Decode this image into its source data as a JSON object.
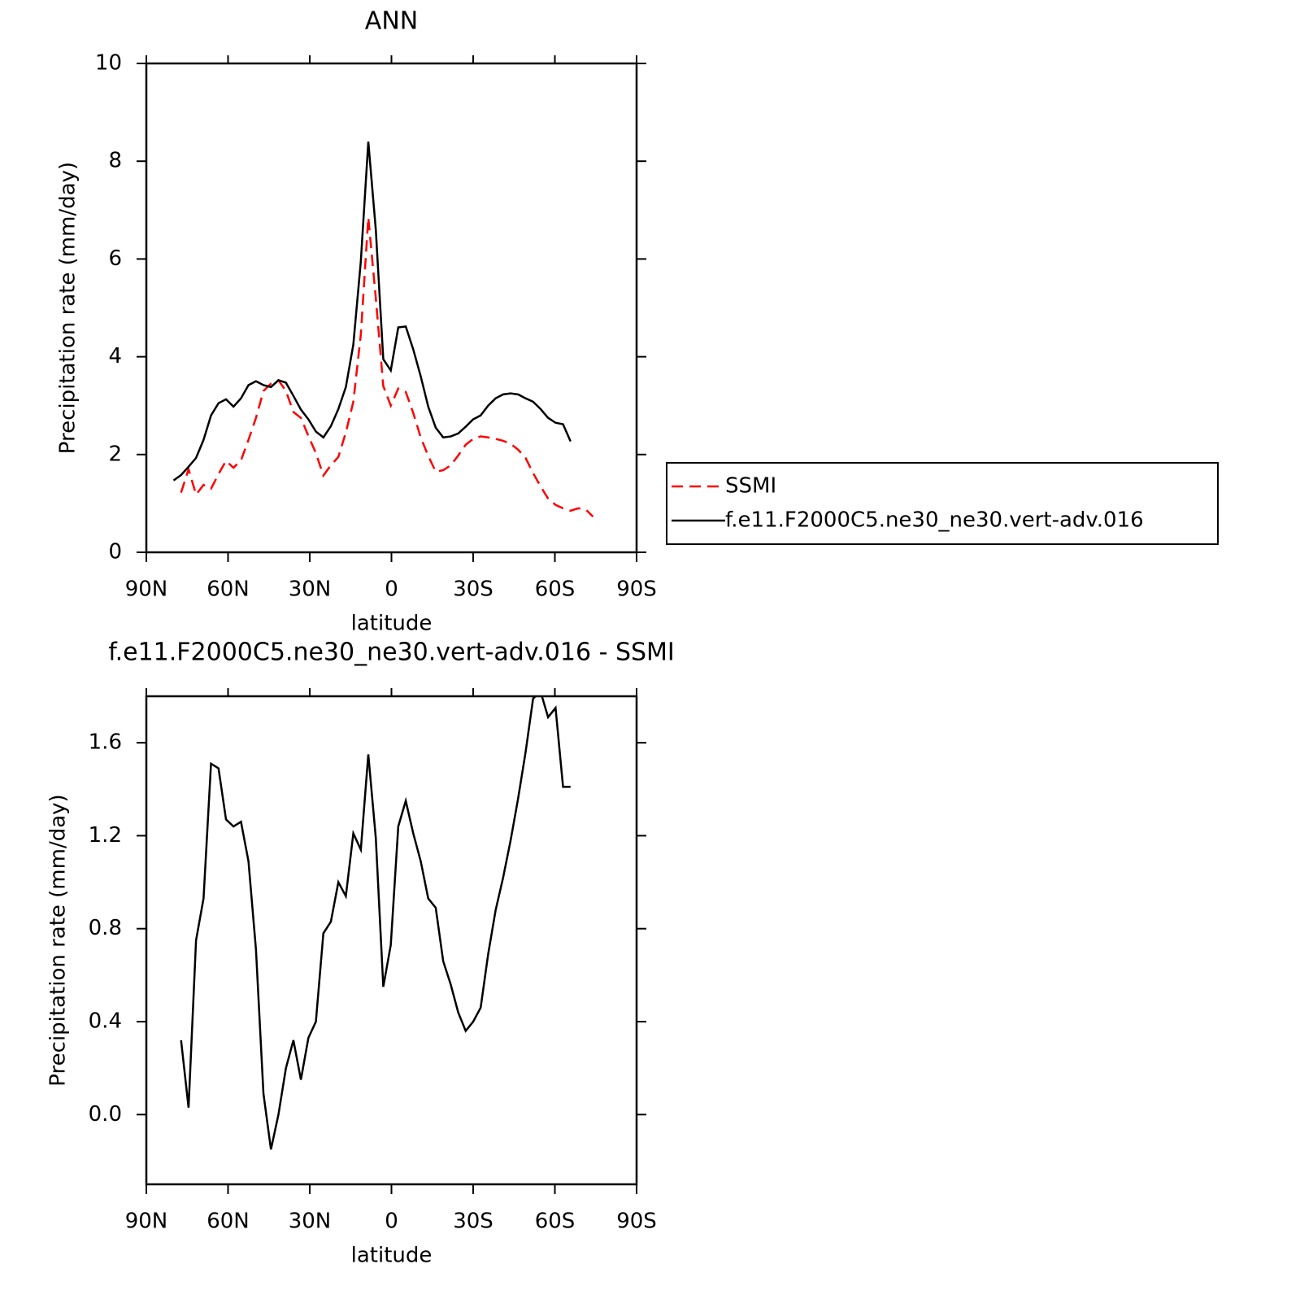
{
  "chart_data": [
    {
      "type": "line",
      "title": "ANN",
      "xlabel": "latitude",
      "ylabel": "Precipitation rate (mm/day)",
      "xlim": [
        90,
        -90
      ],
      "xticks": [
        {
          "value": 90,
          "label": "90N"
        },
        {
          "value": 60,
          "label": "60N"
        },
        {
          "value": 30,
          "label": "30N"
        },
        0,
        {
          "value": -30,
          "label": "30S"
        },
        {
          "value": -60,
          "label": "60S"
        },
        {
          "value": -90,
          "label": "90S"
        }
      ],
      "ylim": [
        0,
        10
      ],
      "yticks": [
        0,
        2,
        4,
        6,
        8,
        10
      ],
      "legend": "right",
      "x": [
        80,
        77.25,
        74.5,
        71.75,
        69,
        66.25,
        63.5,
        60.75,
        58,
        55.25,
        52.5,
        49.75,
        47,
        44.25,
        41.5,
        38.75,
        36,
        33.25,
        30.5,
        27.75,
        25,
        22.25,
        19.5,
        16.75,
        14,
        11.25,
        8.5,
        5.75,
        3,
        0.25,
        -2.5,
        -5.25,
        -8,
        -10.75,
        -13.5,
        -16.25,
        -19,
        -21.75,
        -24.5,
        -27.25,
        -30,
        -32.75,
        -35.5,
        -38.25,
        -41,
        -43.75,
        -46.5,
        -49.25,
        -52,
        -54.75,
        -57.5,
        -60.25,
        -63,
        -65.75,
        -68.5,
        -71.25,
        -74
      ],
      "series": [
        {
          "name": "SSMI",
          "color": "#ff0000",
          "dash": true,
          "values": [
            null,
            1.22,
            1.7,
            1.18,
            1.38,
            1.3,
            1.6,
            1.87,
            1.73,
            1.88,
            2.3,
            2.75,
            3.3,
            3.45,
            3.52,
            3.3,
            2.87,
            2.75,
            2.38,
            2.03,
            1.57,
            1.78,
            1.95,
            2.45,
            3.08,
            4.45,
            6.85,
            5.2,
            3.4,
            3.0,
            3.35,
            3.28,
            2.85,
            2.35,
            1.97,
            1.65,
            1.68,
            1.78,
            1.98,
            2.2,
            2.32,
            2.37,
            2.35,
            2.32,
            2.28,
            2.22,
            2.1,
            1.93,
            1.62,
            1.35,
            1.1,
            0.97,
            0.9,
            0.85,
            0.9,
            0.88,
            0.73
          ]
        },
        {
          "name": "f.e11.F2000C5.ne30_ne30.vert-adv.016",
          "color": "#000000",
          "dash": false,
          "values": [
            1.47,
            1.58,
            1.75,
            1.93,
            2.3,
            2.8,
            3.05,
            3.13,
            2.98,
            3.15,
            3.42,
            3.5,
            3.42,
            3.38,
            3.52,
            3.47,
            3.2,
            2.92,
            2.72,
            2.47,
            2.35,
            2.58,
            2.93,
            3.38,
            4.25,
            5.95,
            8.4,
            6.6,
            3.95,
            3.72,
            4.6,
            4.62,
            4.15,
            3.6,
            2.98,
            2.55,
            2.35,
            2.37,
            2.43,
            2.57,
            2.72,
            2.8,
            3.0,
            3.15,
            3.23,
            3.25,
            3.23,
            3.15,
            3.08,
            2.93,
            2.75,
            2.65,
            2.62,
            2.27,
            null,
            null,
            null
          ]
        }
      ]
    },
    {
      "type": "line",
      "title": "f.e11.F2000C5.ne30_ne30.vert-adv.016 - SSMI",
      "xlabel": "latitude",
      "ylabel": "Precipitation rate (mm/day)",
      "xlim": [
        90,
        -90
      ],
      "xticks": [
        {
          "value": 90,
          "label": "90N"
        },
        {
          "value": 60,
          "label": "60N"
        },
        {
          "value": 30,
          "label": "30N"
        },
        0,
        {
          "value": -30,
          "label": "30S"
        },
        {
          "value": -60,
          "label": "60S"
        },
        {
          "value": -90,
          "label": "90S"
        }
      ],
      "ylim": [
        -0.3,
        1.8
      ],
      "yticks": [
        {
          "value": 0,
          "label": "0.0"
        },
        0.4,
        0.8,
        1.2,
        1.6
      ],
      "x": [
        77.25,
        74.5,
        71.75,
        69,
        66.25,
        63.5,
        60.75,
        58,
        55.25,
        52.5,
        49.75,
        47,
        44.25,
        41.5,
        38.75,
        36,
        33.25,
        30.5,
        27.75,
        25,
        22.25,
        19.5,
        16.75,
        14,
        11.25,
        8.5,
        5.75,
        3,
        0.25,
        -2.5,
        -5.25,
        -8,
        -10.75,
        -13.5,
        -16.25,
        -19,
        -21.75,
        -24.5,
        -27.25,
        -30,
        -32.75,
        -35.5,
        -38.25,
        -41,
        -43.75,
        -46.5,
        -49.25,
        -52,
        -54.75,
        -57.5,
        -60.25,
        -63,
        -65.75
      ],
      "color": "#000000",
      "values": [
        0.32,
        0.03,
        0.75,
        0.93,
        1.51,
        1.49,
        1.27,
        1.24,
        1.26,
        1.09,
        0.71,
        0.09,
        -0.15,
        0.0,
        0.2,
        0.32,
        0.15,
        0.33,
        0.4,
        0.78,
        0.83,
        1.0,
        0.94,
        1.21,
        1.14,
        1.55,
        1.19,
        0.55,
        0.73,
        1.24,
        1.35,
        1.21,
        1.09,
        0.93,
        0.89,
        0.66,
        0.56,
        0.44,
        0.36,
        0.4,
        0.46,
        0.69,
        0.88,
        1.02,
        1.18,
        1.36,
        1.56,
        1.79,
        1.82,
        1.71,
        1.75,
        1.41,
        1.41
      ]
    }
  ]
}
